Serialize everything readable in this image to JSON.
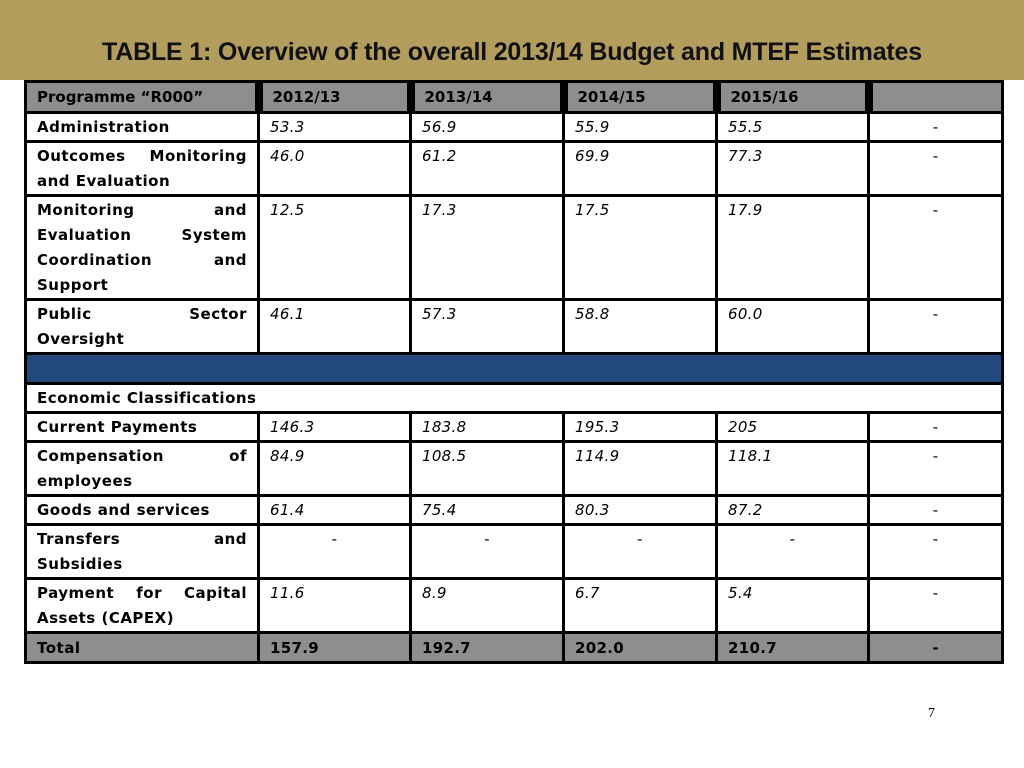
{
  "slide": {
    "title": "TABLE 1: Overview of the overall 2013/14 Budget and MTEF Estimates",
    "page_number": "7"
  },
  "table": {
    "headers": [
      "Programme “R000”",
      "2012/13",
      "2013/14",
      "2014/15",
      "2015/16",
      ""
    ],
    "programme_rows": [
      {
        "label": "Administration",
        "values": [
          "53.3",
          "56.9",
          "55.9",
          "55.5",
          "-"
        ]
      },
      {
        "label": "Outcomes Monitoring and Evaluation",
        "values": [
          "46.0",
          "61.2",
          "69.9",
          "77.3",
          "-"
        ]
      },
      {
        "label": "Monitoring and Evaluation System Coordination and Support",
        "values": [
          "12.5",
          "17.3",
          "17.5",
          "17.9",
          "-"
        ]
      },
      {
        "label": "Public Sector Oversight",
        "values": [
          "46.1",
          "57.3",
          "58.8",
          "60.0",
          "-"
        ]
      }
    ],
    "section_label": "Economic Classifications",
    "economic_rows": [
      {
        "label": "Current Payments",
        "values": [
          "146.3",
          "183.8",
          "195.3",
          "205",
          "-"
        ]
      },
      {
        "label": "Compensation of employees",
        "values": [
          "84.9",
          "108.5",
          "114.9",
          "118.1",
          "-"
        ]
      },
      {
        "label": "Goods and services",
        "values": [
          "61.4",
          "75.4",
          "80.3",
          "87.2",
          "-"
        ]
      },
      {
        "label": "Transfers and Subsidies",
        "values": [
          "-",
          "-",
          "-",
          "-",
          "-"
        ]
      },
      {
        "label": "Payment for Capital Assets (CAPEX)",
        "values": [
          "11.6",
          "8.9",
          "6.7",
          "5.4",
          "-"
        ]
      }
    ],
    "total_row": {
      "label": "Total",
      "values": [
        "157.9",
        "192.7",
        "202.0",
        "210.7",
        "-"
      ]
    }
  },
  "colors": {
    "top_band": "#b29d5d",
    "header_fill": "#8e8e8e",
    "separator_band": "#23487b"
  }
}
